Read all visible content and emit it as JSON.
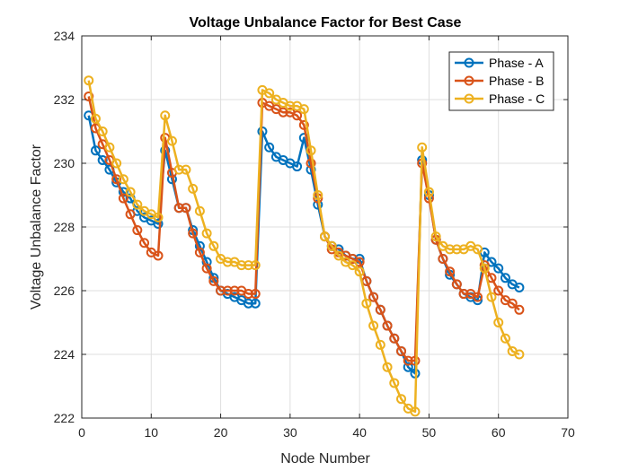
{
  "chart_data": {
    "type": "line",
    "title": "Voltage Unbalance Factor for Best Case",
    "xlabel": "Node Number",
    "ylabel": "Voltage Unbalance Factor",
    "xlim": [
      0,
      70
    ],
    "ylim": [
      222,
      234
    ],
    "xticks": [
      "0",
      "10",
      "20",
      "30",
      "40",
      "50",
      "60",
      "70"
    ],
    "yticks": [
      "222",
      "224",
      "226",
      "228",
      "230",
      "232",
      "234"
    ],
    "grid": true,
    "legend_position": "top-right",
    "x": [
      1,
      2,
      3,
      4,
      5,
      6,
      7,
      8,
      9,
      10,
      11,
      12,
      13,
      14,
      15,
      16,
      17,
      18,
      19,
      20,
      21,
      22,
      23,
      24,
      25,
      26,
      27,
      28,
      29,
      30,
      31,
      32,
      33,
      34,
      35,
      36,
      37,
      38,
      39,
      40,
      41,
      42,
      43,
      44,
      45,
      46,
      47,
      48,
      49,
      50,
      51,
      52,
      53,
      54,
      55,
      56,
      57,
      58,
      59,
      60,
      61,
      62,
      63
    ],
    "series": [
      {
        "name": "Phase - A",
        "color": "#0072BD",
        "values": [
          231.5,
          230.4,
          230.1,
          229.8,
          229.4,
          229.1,
          228.9,
          228.5,
          228.3,
          228.2,
          228.1,
          230.4,
          229.5,
          228.6,
          228.6,
          227.9,
          227.4,
          226.9,
          226.4,
          226.0,
          225.9,
          225.8,
          225.7,
          225.6,
          225.6,
          231.0,
          230.5,
          230.2,
          230.1,
          230.0,
          229.9,
          230.8,
          229.8,
          228.7,
          227.7,
          227.4,
          227.3,
          227.1,
          227.0,
          227.0,
          226.3,
          225.8,
          225.4,
          224.9,
          224.5,
          224.1,
          223.6,
          223.4,
          230.1,
          229.0,
          227.6,
          227.0,
          226.5,
          226.2,
          225.9,
          225.8,
          225.7,
          227.2,
          226.9,
          226.7,
          226.4,
          226.2,
          226.1
        ]
      },
      {
        "name": "Phase - B",
        "color": "#D95319",
        "values": [
          232.1,
          231.1,
          230.6,
          230.1,
          229.5,
          228.9,
          228.4,
          227.9,
          227.5,
          227.2,
          227.1,
          230.8,
          229.7,
          228.6,
          228.6,
          227.8,
          227.2,
          226.7,
          226.3,
          226.0,
          226.0,
          226.0,
          226.0,
          225.9,
          225.9,
          231.9,
          231.8,
          231.7,
          231.6,
          231.6,
          231.5,
          231.2,
          230.0,
          228.9,
          227.7,
          227.3,
          227.2,
          227.1,
          227.0,
          226.9,
          226.3,
          225.8,
          225.4,
          224.9,
          224.5,
          224.1,
          223.8,
          223.8,
          230.0,
          228.9,
          227.6,
          227.0,
          226.6,
          226.2,
          225.9,
          225.9,
          225.8,
          226.8,
          226.4,
          226.0,
          225.7,
          225.6,
          225.4
        ]
      },
      {
        "name": "Phase - C",
        "color": "#EDB120",
        "values": [
          232.6,
          231.4,
          231.0,
          230.5,
          230.0,
          229.5,
          229.1,
          228.7,
          228.5,
          228.4,
          228.3,
          231.5,
          230.7,
          229.8,
          229.8,
          229.2,
          228.5,
          227.8,
          227.4,
          227.0,
          226.9,
          226.9,
          226.8,
          226.8,
          226.8,
          232.3,
          232.2,
          232.0,
          231.9,
          231.8,
          231.8,
          231.7,
          230.4,
          229.0,
          227.7,
          227.4,
          227.1,
          226.9,
          226.8,
          226.6,
          225.6,
          224.9,
          224.3,
          223.6,
          223.1,
          222.6,
          222.3,
          222.2,
          230.5,
          229.1,
          227.7,
          227.4,
          227.3,
          227.3,
          227.3,
          227.4,
          227.3,
          226.7,
          225.8,
          225.0,
          224.5,
          224.1,
          224.0
        ]
      }
    ]
  }
}
